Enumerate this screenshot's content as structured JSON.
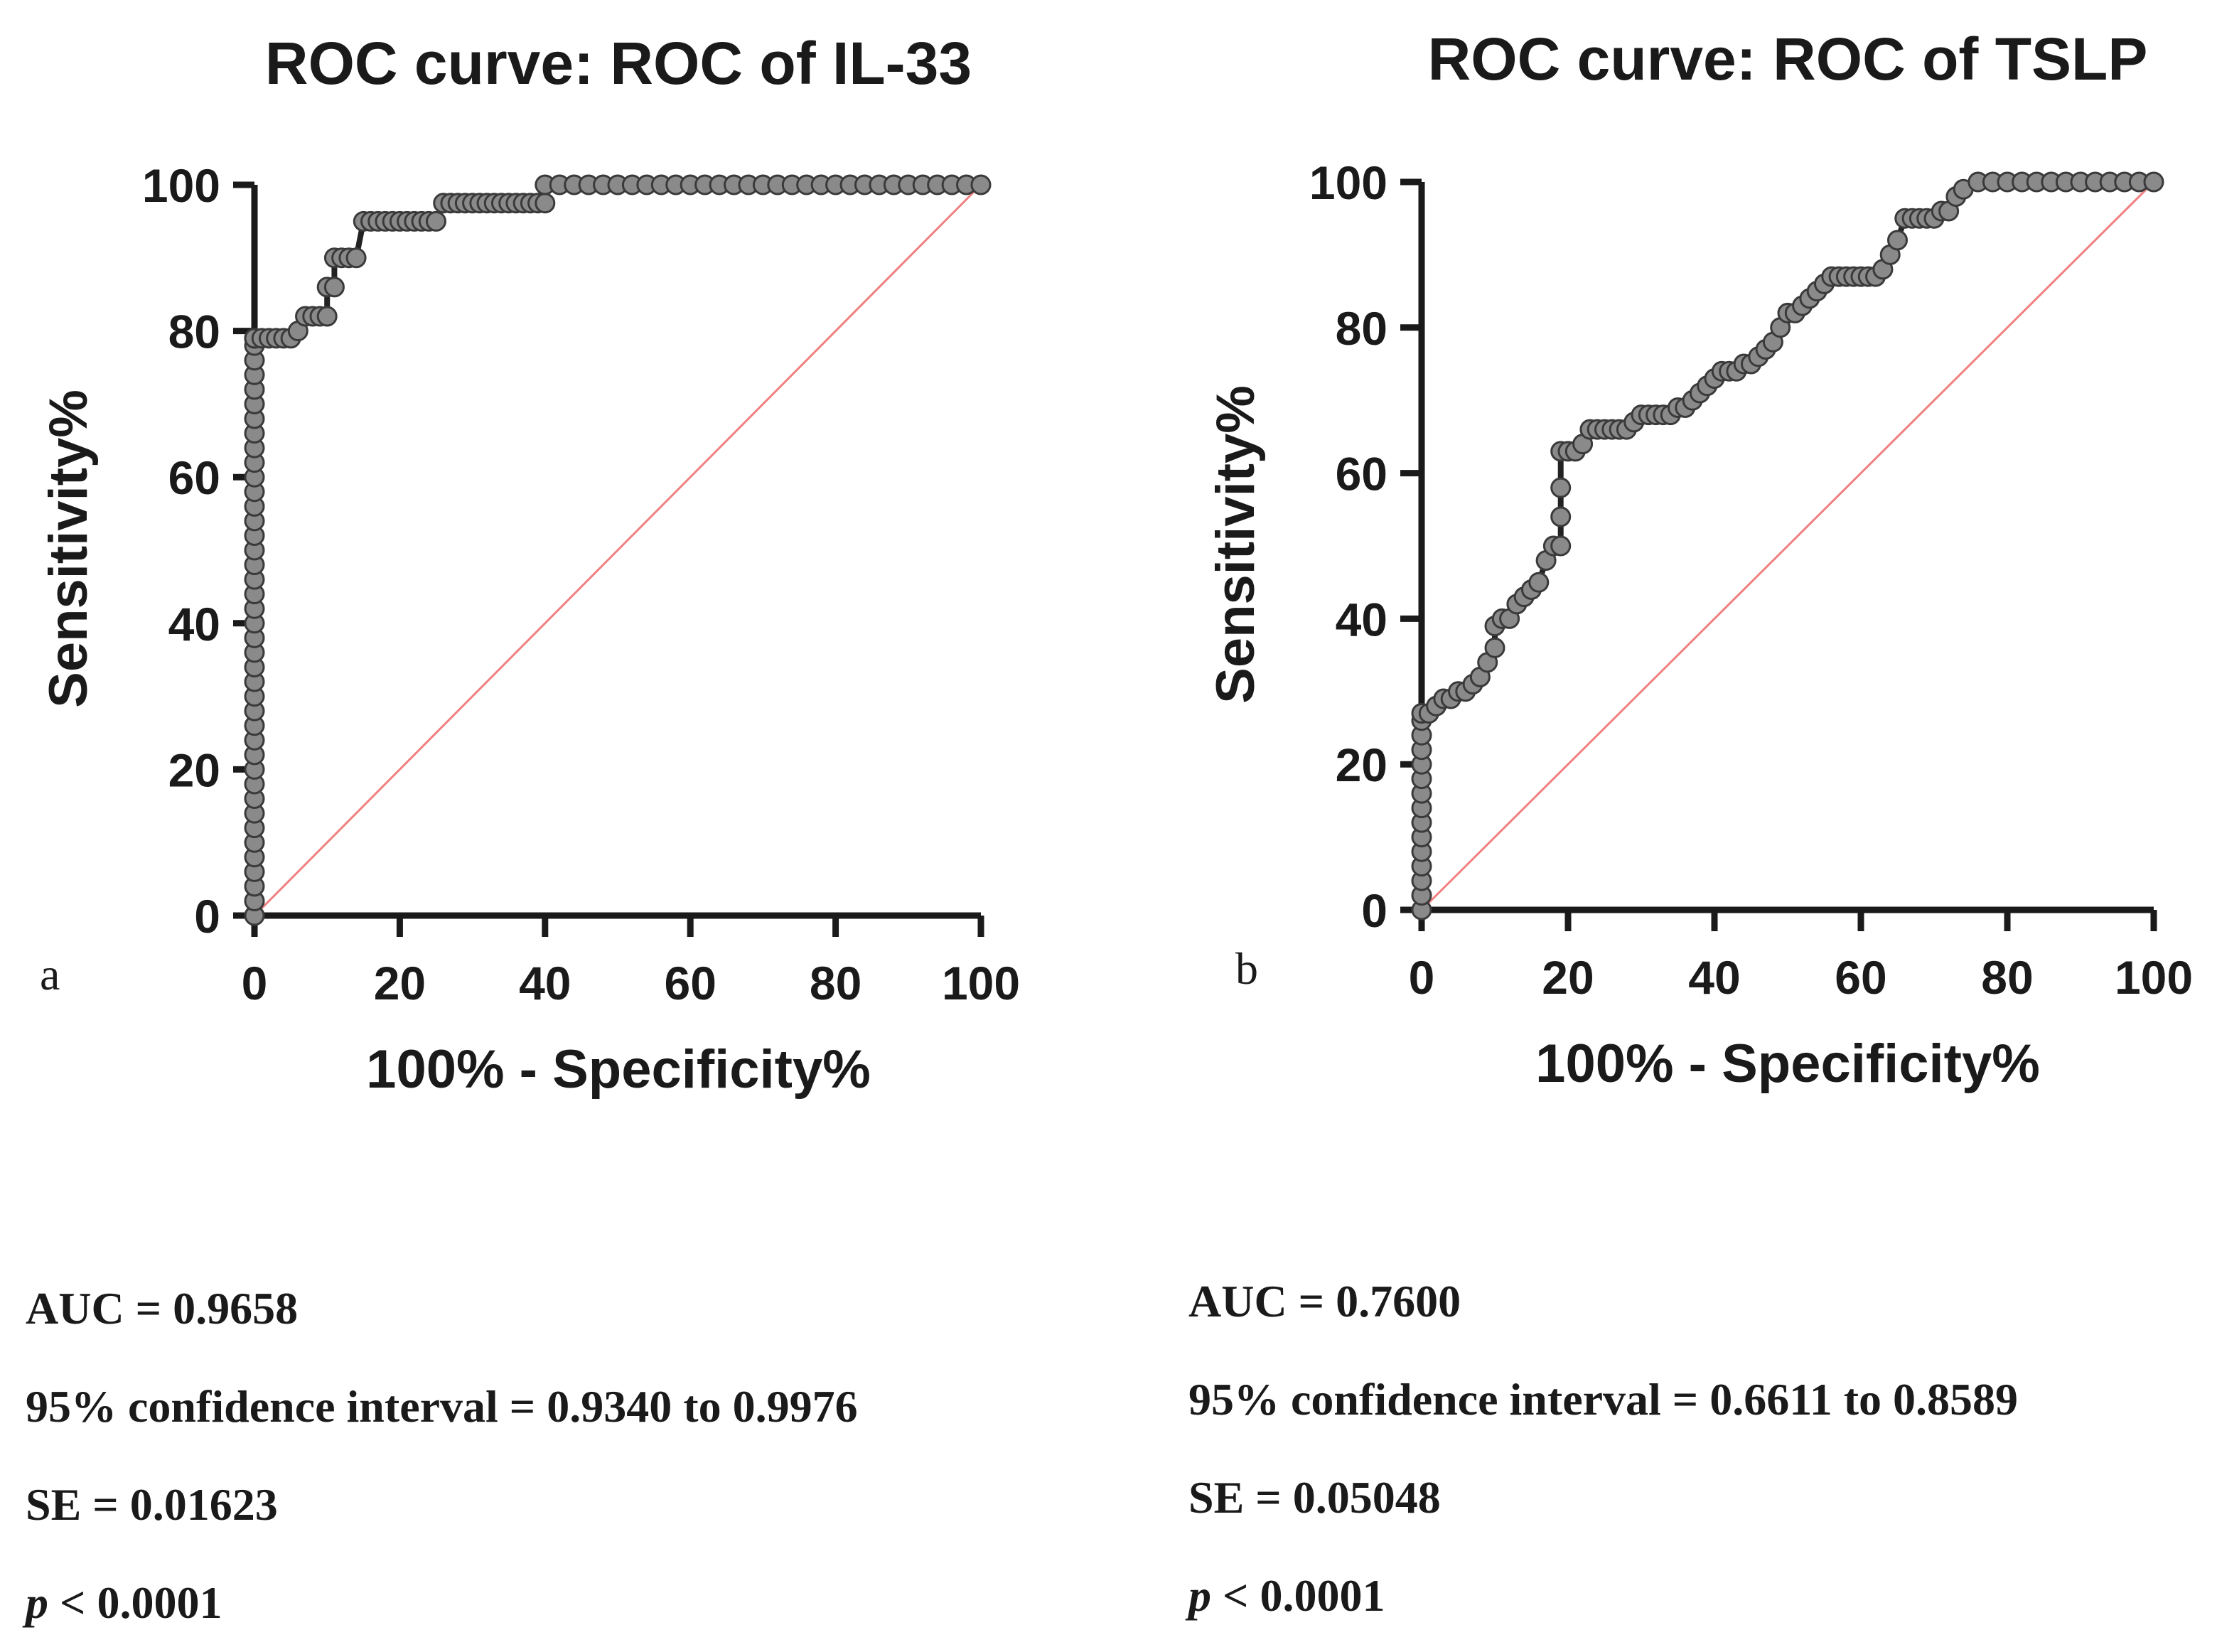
{
  "chart_data": [
    {
      "type": "line",
      "panel": "a",
      "title": "ROC curve: ROC of IL-33",
      "xlabel": "100% - Specificity%",
      "ylabel": "Sensitivity%",
      "xlim": [
        0,
        100
      ],
      "ylim": [
        0,
        100
      ],
      "xticks": [
        0,
        20,
        40,
        60,
        80,
        100
      ],
      "yticks": [
        0,
        20,
        40,
        60,
        80,
        100
      ],
      "grid": false,
      "series": [
        {
          "name": "ROC of IL-33",
          "x": [
            0,
            0,
            0,
            0,
            0,
            0,
            0,
            0,
            0,
            0,
            0,
            0,
            0,
            0,
            0,
            0,
            0,
            0,
            0,
            0,
            0,
            0,
            0,
            0,
            0,
            0,
            0,
            0,
            0,
            0,
            0,
            0,
            0,
            0,
            0,
            0,
            0,
            0,
            0,
            0,
            0,
            0,
            0,
            0,
            1,
            2,
            3,
            4,
            5,
            6,
            7,
            8,
            9,
            10,
            10,
            11,
            11,
            12,
            13,
            14,
            15,
            16,
            17,
            18,
            19,
            20,
            21,
            22,
            23,
            24,
            25,
            26,
            27,
            28,
            29,
            30,
            31,
            32,
            33,
            34,
            35,
            36,
            37,
            38,
            39,
            40,
            40,
            42,
            44,
            46,
            48,
            50,
            52,
            54,
            56,
            58,
            60,
            62,
            64,
            66,
            68,
            70,
            72,
            74,
            76,
            78,
            80,
            82,
            84,
            86,
            88,
            90,
            92,
            94,
            96,
            98,
            100
          ],
          "y": [
            0,
            2,
            4,
            6,
            8,
            10,
            12,
            14,
            16,
            18,
            20,
            22,
            24,
            26,
            28,
            30,
            32,
            34,
            36,
            38,
            40,
            42,
            44,
            46,
            48,
            50,
            52,
            54,
            56,
            58,
            60,
            62,
            64,
            66,
            68,
            70,
            72,
            74,
            76,
            78,
            79,
            79,
            79,
            79,
            79,
            79,
            79,
            79,
            79,
            80,
            82,
            82,
            82,
            82,
            86,
            86,
            90,
            90,
            90,
            90,
            95,
            95,
            95,
            95,
            95,
            95,
            95,
            95,
            95,
            95,
            95,
            97.5,
            97.5,
            97.5,
            97.5,
            97.5,
            97.5,
            97.5,
            97.5,
            97.5,
            97.5,
            97.5,
            97.5,
            97.5,
            97.5,
            97.5,
            100,
            100,
            100,
            100,
            100,
            100,
            100,
            100,
            100,
            100,
            100,
            100,
            100,
            100,
            100,
            100,
            100,
            100,
            100,
            100,
            100,
            100,
            100,
            100,
            100,
            100,
            100,
            100,
            100,
            100,
            100
          ]
        }
      ],
      "stats": {
        "auc": "AUC = 0.9658",
        "ci": "95% confidence interval = 0.9340 to 0.9976",
        "se": "SE = 0.01623",
        "p_symbol": "p",
        "p_rest": " < 0.0001"
      }
    },
    {
      "type": "line",
      "panel": "b",
      "title": "ROC curve: ROC of TSLP",
      "xlabel": "100% - Specificity%",
      "ylabel": "Sensitivity%",
      "xlim": [
        0,
        100
      ],
      "ylim": [
        0,
        100
      ],
      "xticks": [
        0,
        20,
        40,
        60,
        80,
        100
      ],
      "yticks": [
        0,
        20,
        40,
        60,
        80,
        100
      ],
      "grid": false,
      "series": [
        {
          "name": "ROC of TSLP",
          "x": [
            0,
            0,
            0,
            0,
            0,
            0,
            0,
            0,
            0,
            0,
            0,
            0,
            0,
            0,
            0,
            1,
            2,
            3,
            4,
            5,
            6,
            7,
            8,
            9,
            10,
            10,
            11,
            12,
            13,
            14,
            15,
            16,
            17,
            18,
            19,
            19,
            19,
            19,
            20,
            21,
            22,
            23,
            24,
            25,
            26,
            27,
            28,
            29,
            30,
            31,
            32,
            33,
            34,
            35,
            36,
            37,
            38,
            39,
            40,
            41,
            42,
            43,
            44,
            45,
            46,
            47,
            48,
            49,
            50,
            51,
            52,
            53,
            54,
            55,
            56,
            57,
            58,
            59,
            60,
            61,
            62,
            63,
            64,
            65,
            66,
            67,
            68,
            69,
            70,
            71,
            72,
            73,
            74,
            76,
            78,
            80,
            82,
            84,
            86,
            88,
            90,
            92,
            94,
            96,
            98,
            100
          ],
          "y": [
            0,
            2,
            4,
            6,
            8,
            10,
            12,
            14,
            16,
            18,
            20,
            22,
            24,
            26,
            27,
            27,
            28,
            29,
            29,
            30,
            30,
            31,
            32,
            34,
            36,
            39,
            40,
            40,
            42,
            43,
            44,
            45,
            48,
            50,
            50,
            54,
            58,
            63,
            63,
            63,
            64,
            66,
            66,
            66,
            66,
            66,
            66,
            67,
            68,
            68,
            68,
            68,
            68,
            69,
            69,
            70,
            71,
            72,
            73,
            74,
            74,
            74,
            75,
            75,
            76,
            77,
            78,
            80,
            82,
            82,
            83,
            84,
            85,
            86,
            87,
            87,
            87,
            87,
            87,
            87,
            87,
            88,
            90,
            92,
            95,
            95,
            95,
            95,
            95,
            96,
            96,
            98,
            99,
            100,
            100,
            100,
            100,
            100,
            100,
            100,
            100,
            100,
            100,
            100,
            100,
            100
          ]
        }
      ],
      "stats": {
        "auc": "AUC = 0.7600",
        "ci": "95% confidence interval = 0.6611 to 0.8589",
        "se": "SE = 0.05048",
        "p_symbol": "p",
        "p_rest": " < 0.0001"
      }
    }
  ],
  "colors": {
    "axis": "#1a1a1a",
    "roc_line": "#222222",
    "roc_point_fill": "#8a8a8a",
    "roc_point_stroke": "#3a3a3a",
    "reference_line": "#f08080",
    "background": "#ffffff"
  }
}
